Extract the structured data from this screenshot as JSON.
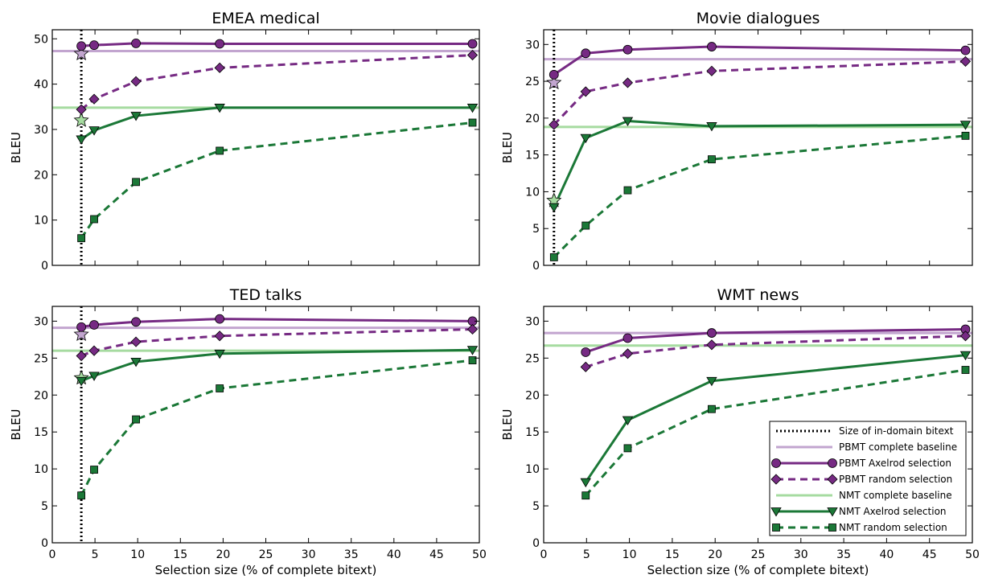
{
  "chart_data": [
    {
      "type": "line",
      "title": "EMEA medical",
      "ylabel": "BLEU",
      "xlabel": "",
      "xlim": [
        0,
        50
      ],
      "ylim": [
        0,
        52
      ],
      "yticks": [
        0,
        10,
        20,
        30,
        40,
        50
      ],
      "show_xticklabels": false,
      "in_domain_size": 3.4,
      "baselines": {
        "pbmt": 47.3,
        "nmt": 34.8
      },
      "stars": {
        "pbmt": [
          3.4,
          46.7
        ],
        "nmt": [
          3.4,
          32.0
        ]
      },
      "series": [
        {
          "name": "PBMT Axelrod selection",
          "x": [
            3.4,
            4.9,
            9.8,
            19.6,
            49.2
          ],
          "y": [
            48.4,
            48.6,
            49.0,
            48.9,
            48.9
          ]
        },
        {
          "name": "PBMT random selection",
          "x": [
            3.4,
            4.9,
            9.8,
            19.6,
            49.2
          ],
          "y": [
            34.4,
            36.7,
            40.6,
            43.6,
            46.4
          ]
        },
        {
          "name": "NMT Axelrod selection",
          "x": [
            3.4,
            4.9,
            9.8,
            19.6,
            49.2
          ],
          "y": [
            27.8,
            29.8,
            33.0,
            34.8,
            34.8
          ]
        },
        {
          "name": "NMT random selection",
          "x": [
            3.4,
            4.9,
            9.8,
            19.6,
            49.2
          ],
          "y": [
            6.0,
            10.2,
            18.4,
            25.3,
            31.5
          ]
        }
      ]
    },
    {
      "type": "line",
      "title": "Movie dialogues",
      "ylabel": "BLEU",
      "xlabel": "",
      "xlim": [
        0,
        50
      ],
      "ylim": [
        0,
        32
      ],
      "yticks": [
        0,
        5,
        10,
        15,
        20,
        25,
        30
      ],
      "show_xticklabels": false,
      "in_domain_size": 1.2,
      "baselines": {
        "pbmt": 28.0,
        "nmt": 18.8
      },
      "stars": {
        "pbmt": [
          1.2,
          24.8
        ],
        "nmt": [
          1.2,
          8.8
        ]
      },
      "series": [
        {
          "name": "PBMT Axelrod selection",
          "x": [
            1.2,
            4.9,
            9.8,
            19.6,
            49.2
          ],
          "y": [
            25.9,
            28.8,
            29.3,
            29.7,
            29.2
          ]
        },
        {
          "name": "PBMT random selection",
          "x": [
            1.2,
            4.9,
            9.8,
            19.6,
            49.2
          ],
          "y": [
            19.1,
            23.6,
            24.8,
            26.4,
            27.7
          ]
        },
        {
          "name": "NMT Axelrod selection",
          "x": [
            1.2,
            4.9,
            9.8,
            19.6,
            49.2
          ],
          "y": [
            7.9,
            17.3,
            19.6,
            18.9,
            19.1
          ]
        },
        {
          "name": "NMT random selection",
          "x": [
            1.2,
            4.9,
            9.8,
            19.6,
            49.2
          ],
          "y": [
            1.1,
            5.4,
            10.2,
            14.4,
            17.6
          ]
        }
      ]
    },
    {
      "type": "line",
      "title": "TED talks",
      "ylabel": "BLEU",
      "xlabel": "Selection size (% of complete bitext)",
      "xlim": [
        0,
        50
      ],
      "ylim": [
        0,
        32
      ],
      "yticks": [
        0,
        5,
        10,
        15,
        20,
        25,
        30
      ],
      "xticks": [
        0,
        5,
        10,
        15,
        20,
        25,
        30,
        35,
        40,
        45,
        50
      ],
      "show_xticklabels": true,
      "in_domain_size": 3.4,
      "baselines": {
        "pbmt": 29.1,
        "nmt": 26.0
      },
      "stars": {
        "pbmt": [
          3.4,
          28.2
        ],
        "nmt": [
          3.4,
          22.3
        ]
      },
      "series": [
        {
          "name": "PBMT Axelrod selection",
          "x": [
            3.4,
            4.9,
            9.8,
            19.6,
            49.2
          ],
          "y": [
            29.2,
            29.5,
            29.9,
            30.3,
            30.0
          ]
        },
        {
          "name": "PBMT random selection",
          "x": [
            3.4,
            4.9,
            9.8,
            19.6,
            49.2
          ],
          "y": [
            25.3,
            26.0,
            27.2,
            28.0,
            28.9
          ]
        },
        {
          "name": "NMT Axelrod selection",
          "x": [
            3.4,
            4.9,
            9.8,
            19.6,
            49.2
          ],
          "y": [
            21.9,
            22.6,
            24.5,
            25.6,
            26.1
          ]
        },
        {
          "name": "NMT random selection",
          "x": [
            3.4,
            4.9,
            9.8,
            19.6,
            49.2
          ],
          "y": [
            6.4,
            9.9,
            16.7,
            20.9,
            24.7
          ]
        }
      ]
    },
    {
      "type": "line",
      "title": "WMT news",
      "ylabel": "BLEU",
      "xlabel": "Selection size (% of complete bitext)",
      "xlim": [
        0,
        50
      ],
      "ylim": [
        0,
        32
      ],
      "yticks": [
        0,
        5,
        10,
        15,
        20,
        25,
        30
      ],
      "xticks": [
        0,
        5,
        10,
        15,
        20,
        25,
        30,
        35,
        40,
        45,
        50
      ],
      "show_xticklabels": true,
      "in_domain_size": null,
      "baselines": {
        "pbmt": 28.4,
        "nmt": 26.7
      },
      "stars": null,
      "legend": "lower right",
      "series": [
        {
          "name": "PBMT Axelrod selection",
          "x": [
            4.9,
            9.8,
            19.6,
            49.2
          ],
          "y": [
            25.8,
            27.7,
            28.4,
            28.9
          ]
        },
        {
          "name": "PBMT random selection",
          "x": [
            4.9,
            9.8,
            19.6,
            49.2
          ],
          "y": [
            23.8,
            25.6,
            26.8,
            28.0
          ]
        },
        {
          "name": "NMT Axelrod selection",
          "x": [
            4.9,
            9.8,
            19.6,
            49.2
          ],
          "y": [
            8.2,
            16.6,
            21.9,
            25.4
          ]
        },
        {
          "name": "NMT random selection",
          "x": [
            4.9,
            9.8,
            19.6,
            49.2
          ],
          "y": [
            6.4,
            12.8,
            18.1,
            23.4
          ]
        }
      ]
    }
  ],
  "legend": {
    "entries": [
      {
        "key": "size",
        "label": "Size of in-domain bitext"
      },
      {
        "key": "pbmt_base",
        "label": "PBMT complete baseline"
      },
      {
        "key": "pbmt_axel",
        "label": "PBMT Axelrod selection"
      },
      {
        "key": "pbmt_rand",
        "label": "PBMT random selection"
      },
      {
        "key": "nmt_base",
        "label": "NMT complete baseline"
      },
      {
        "key": "nmt_axel",
        "label": "NMT Axelrod selection"
      },
      {
        "key": "nmt_rand",
        "label": "NMT random selection"
      }
    ]
  },
  "colors": {
    "pbmt": "#762a83",
    "pbmt_light": "#c2a5cf",
    "nmt": "#1b7837",
    "nmt_light": "#a6dba0"
  }
}
